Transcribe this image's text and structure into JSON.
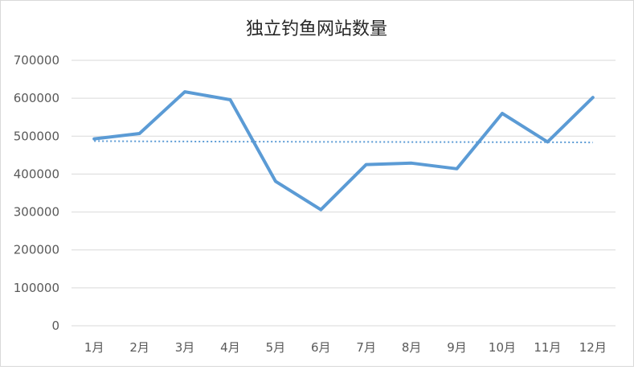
{
  "chart_data": {
    "type": "line",
    "title": "独立钓鱼网站数量",
    "xlabel": "",
    "ylabel": "",
    "categories": [
      "1月",
      "2月",
      "3月",
      "4月",
      "5月",
      "6月",
      "7月",
      "8月",
      "9月",
      "10月",
      "11月",
      "12月"
    ],
    "series": [
      {
        "values": [
          493000,
          507000,
          617000,
          596000,
          381000,
          306000,
          425000,
          429000,
          414000,
          560000,
          485000,
          602000
        ],
        "style": "solid",
        "color": "#5b9bd5"
      },
      {
        "values": [
          487000,
          486500,
          486000,
          485500,
          485500,
          485000,
          485000,
          484500,
          484500,
          484000,
          484000,
          483500
        ],
        "style": "dotted",
        "color": "#5b9bd5"
      }
    ],
    "ylim": [
      0,
      700000
    ],
    "yticks": [
      "0",
      "100000",
      "200000",
      "300000",
      "400000",
      "500000",
      "600000",
      "700000"
    ],
    "grid": true,
    "legend": "none"
  }
}
